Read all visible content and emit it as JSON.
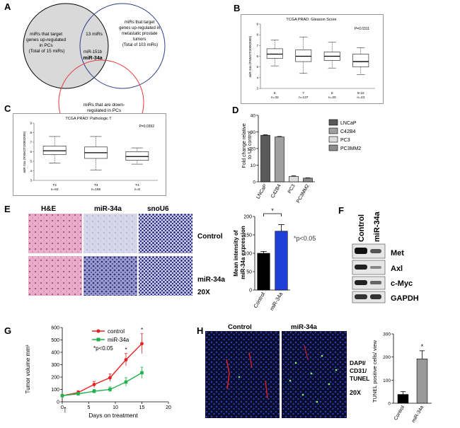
{
  "panels": {
    "A": {
      "label": "A",
      "circle_left": "miRs that target genes up-regulated in PCs (Total of 15 miRs)",
      "circle_right": "miRs that target genes up-regulated in metastatic prostate tumors (Total of 103 miRs)",
      "circle_bottom": "miRs that are down-regulated in PCs (Total of 28 miRs)",
      "overlap_top": "13 miRs",
      "overlap_center_1": "miR-151b",
      "overlap_center_2": "miR-34a"
    },
    "B": {
      "label": "B",
      "title": "TCGA PRAD: Gleason Score",
      "pvalue": "P=0.0311",
      "ylabel": "miR-34a (RNMOTO0002005)",
      "groups": [
        {
          "name": "6",
          "n": "n=32"
        },
        {
          "name": "7",
          "n": "n=137"
        },
        {
          "name": "8",
          "n": "n=20"
        },
        {
          "name": "9-10",
          "n": "n=23"
        }
      ]
    },
    "C": {
      "label": "C",
      "title": "TCGA PRAD: Pathologic T",
      "pvalue": "P=0.0392",
      "ylabel": "miR-34a (RNMOTO0002005)",
      "groups": [
        {
          "name": "T2",
          "n": "n=63"
        },
        {
          "name": "T3",
          "n": "n=165"
        },
        {
          "name": "T4",
          "n": "n=8"
        }
      ]
    },
    "D": {
      "label": "D",
      "ylabel": "Fold change relative to U6 control",
      "legend": [
        "LNCaP",
        "C42B4",
        "PC3",
        "PC3MM2"
      ]
    },
    "E": {
      "label": "E",
      "col_headers": [
        "H&E",
        "miR-34a",
        "snoU6"
      ],
      "row_labels": [
        "Control",
        "miR-34a"
      ],
      "magnification": "20X",
      "ylabel_1": "Mean intensity of",
      "ylabel_2": "miR-34a expression",
      "star": "*",
      "pnote": "*p<0.05"
    },
    "F": {
      "label": "F",
      "lanes": [
        "Control",
        "miR-34a"
      ],
      "proteins": [
        "Met",
        "Axl",
        "c-Myc",
        "GAPDH"
      ]
    },
    "G": {
      "label": "G",
      "ylabel": "Tumor volume mm³",
      "xlabel": "Days on treatment",
      "legend": [
        "control",
        "miR-34a"
      ],
      "pnote": "*p<0.05"
    },
    "H": {
      "label": "H",
      "col_headers": [
        "Control",
        "miR-34a"
      ],
      "stain_1": "DAPI/",
      "stain_2": "CD31/",
      "stain_3": "TUNEL",
      "magnification": "20X",
      "ylabel": "TUNEL positive cells/ view",
      "star": "*"
    }
  },
  "chart_data": [
    {
      "id": "B",
      "type": "box",
      "title": "TCGA PRAD: Gleason Score",
      "categories": [
        "6",
        "7",
        "8",
        "9-10"
      ],
      "ylim": [
        3,
        9
      ],
      "yticks": [
        3,
        4,
        5,
        6,
        7,
        8,
        9
      ],
      "boxes": [
        {
          "min": 5.1,
          "q1": 5.8,
          "median": 6.2,
          "q3": 6.7,
          "max": 7.5
        },
        {
          "min": 4.4,
          "q1": 5.5,
          "median": 6.0,
          "q3": 6.6,
          "max": 7.8
        },
        {
          "min": 4.9,
          "q1": 5.6,
          "median": 6.0,
          "q3": 6.4,
          "max": 7.3
        },
        {
          "min": 4.3,
          "q1": 5.0,
          "median": 5.5,
          "q3": 6.2,
          "max": 6.8
        }
      ]
    },
    {
      "id": "C",
      "type": "box",
      "title": "TCGA PRAD: Pathologic T",
      "categories": [
        "T2",
        "T3",
        "T4"
      ],
      "ylim": [
        3,
        9
      ],
      "boxes": [
        {
          "min": 4.8,
          "q1": 5.7,
          "median": 6.1,
          "q3": 6.6,
          "max": 7.6
        },
        {
          "min": 4.1,
          "q1": 5.3,
          "median": 5.9,
          "q3": 6.5,
          "max": 7.6
        },
        {
          "min": 4.7,
          "q1": 5.1,
          "median": 5.5,
          "q3": 6.0,
          "max": 6.4
        }
      ]
    },
    {
      "id": "D",
      "type": "bar",
      "categories": [
        "LNCaP",
        "C42B4",
        "PC3",
        "PC3MM2"
      ],
      "values": [
        28,
        27,
        3.3,
        2.2
      ],
      "errors": [
        0.3,
        0.3,
        0.3,
        0.2
      ],
      "ylim": [
        0,
        40
      ],
      "yticks": [
        0,
        10,
        20,
        30,
        40
      ],
      "colors": [
        "#5a5a5a",
        "#a0a0a0",
        "#dcdcdc",
        "#8c8c8c"
      ]
    },
    {
      "id": "E",
      "type": "bar",
      "categories": [
        "Control",
        "miR-34a"
      ],
      "values": [
        100,
        160
      ],
      "errors": [
        5,
        18
      ],
      "ylim": [
        0,
        200
      ],
      "yticks": [
        0,
        50,
        100,
        150,
        200
      ],
      "colors": [
        "#000000",
        "#1f3fd9"
      ]
    },
    {
      "id": "G",
      "type": "line",
      "xlim": [
        0,
        20
      ],
      "xticks": [
        0,
        5,
        10,
        15,
        20
      ],
      "ylim": [
        0,
        600
      ],
      "yticks": [
        0,
        100,
        200,
        300,
        400,
        500,
        600
      ],
      "series": [
        {
          "name": "control",
          "color": "#e8201f",
          "x": [
            0,
            3,
            6,
            9,
            12,
            15
          ],
          "y": [
            50,
            75,
            140,
            195,
            340,
            470
          ],
          "err": [
            10,
            15,
            25,
            30,
            50,
            80
          ]
        },
        {
          "name": "miR-34a",
          "color": "#22b14c",
          "x": [
            0,
            3,
            6,
            9,
            12,
            15
          ],
          "y": [
            50,
            65,
            85,
            100,
            160,
            235
          ],
          "err": [
            10,
            12,
            15,
            20,
            35,
            45
          ]
        }
      ],
      "star_x": [
        12,
        15
      ]
    },
    {
      "id": "H",
      "type": "bar",
      "categories": [
        "Control",
        "miR-34a"
      ],
      "values": [
        38,
        192
      ],
      "errors": [
        12,
        35
      ],
      "ylim": [
        0,
        300
      ],
      "yticks": [
        0,
        100,
        200,
        300
      ],
      "colors": [
        "#000000",
        "#999999"
      ]
    }
  ]
}
